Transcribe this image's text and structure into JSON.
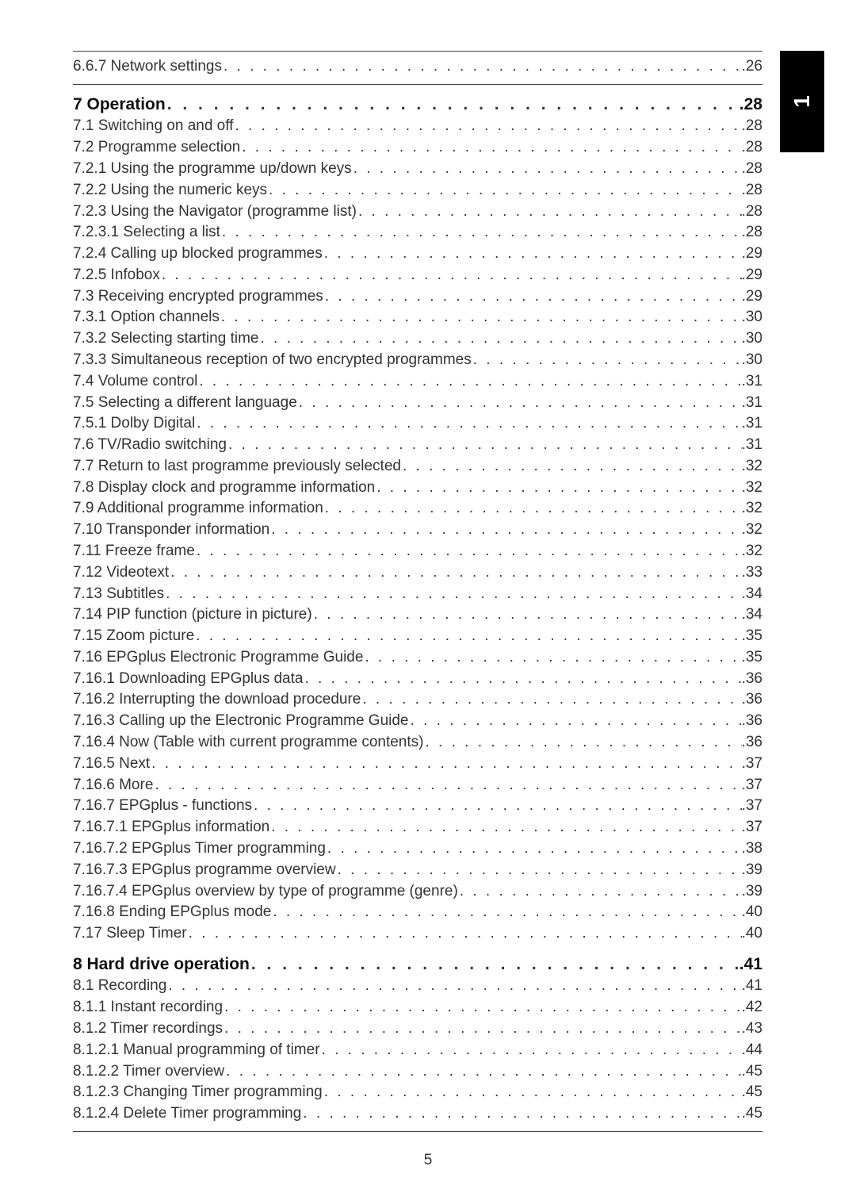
{
  "colors": {
    "text": "#333333",
    "heading": "#111111",
    "rule": "#444444",
    "tab_bg": "#000000",
    "tab_fg": "#ffffff",
    "page_bg": "#ffffff"
  },
  "typography": {
    "body_font": "Arial, Helvetica, sans-serif",
    "line_fontsize_pt": 14,
    "heading_fontsize_pt": 16,
    "tab_fontsize_pt": 21
  },
  "side_tab": {
    "label": "1"
  },
  "page_number": "5",
  "toc": [
    {
      "title": "6.6.7 Network settings",
      "page": "26",
      "section": false,
      "pre_rule": true
    },
    {
      "title": "7 Operation",
      "page": "28",
      "section": true,
      "pre_rule": true
    },
    {
      "title": "7.1 Switching on and off",
      "page": "28",
      "section": false
    },
    {
      "title": "7.2 Programme selection",
      "page": "28",
      "section": false
    },
    {
      "title": "7.2.1 Using the programme up/down keys",
      "page": "28",
      "section": false
    },
    {
      "title": "7.2.2 Using the numeric keys",
      "page": "28",
      "section": false
    },
    {
      "title": "7.2.3 Using the Navigator (programme list)",
      "page": "28",
      "section": false
    },
    {
      "title": "7.2.3.1 Selecting a list",
      "page": "28",
      "section": false
    },
    {
      "title": "7.2.4 Calling up blocked programmes",
      "page": "29",
      "section": false
    },
    {
      "title": "7.2.5 Infobox",
      "page": "29",
      "section": false
    },
    {
      "title": "7.3 Receiving encrypted programmes",
      "page": "29",
      "section": false
    },
    {
      "title": "7.3.1 Option channels",
      "page": "30",
      "section": false
    },
    {
      "title": "7.3.2 Selecting starting time",
      "page": "30",
      "section": false
    },
    {
      "title": "7.3.3 Simultaneous reception of two encrypted programmes",
      "page": "30",
      "section": false
    },
    {
      "title": "7.4 Volume control",
      "page": "31",
      "section": false
    },
    {
      "title": "7.5 Selecting a different language",
      "page": "31",
      "section": false
    },
    {
      "title": "7.5.1 Dolby Digital",
      "page": "31",
      "section": false
    },
    {
      "title": "7.6 TV/Radio switching",
      "page": "31",
      "section": false
    },
    {
      "title": "7.7 Return to last programme previously selected",
      "page": "32",
      "section": false
    },
    {
      "title": "7.8 Display clock and programme information",
      "page": "32",
      "section": false
    },
    {
      "title": "7.9 Additional programme information",
      "page": "32",
      "section": false
    },
    {
      "title": "7.10 Transponder information",
      "page": "32",
      "section": false
    },
    {
      "title": "7.11 Freeze frame",
      "page": "32",
      "section": false
    },
    {
      "title": "7.12 Videotext",
      "page": "33",
      "section": false
    },
    {
      "title": "7.13 Subtitles",
      "page": "34",
      "section": false
    },
    {
      "title": "7.14 PIP function (picture in picture)",
      "page": "34",
      "section": false
    },
    {
      "title": "7.15 Zoom picture",
      "page": "35",
      "section": false
    },
    {
      "title": "7.16 EPGplus Electronic Programme Guide",
      "page": "35",
      "section": false
    },
    {
      "title": "7.16.1 Downloading EPGplus data",
      "page": "36",
      "section": false
    },
    {
      "title": "7.16.2 Interrupting the download procedure",
      "page": "36",
      "section": false
    },
    {
      "title": "7.16.3 Calling up the Electronic Programme Guide",
      "page": "36",
      "section": false
    },
    {
      "title": "7.16.4 Now (Table with current programme contents)",
      "page": "36",
      "section": false
    },
    {
      "title": "7.16.5 Next",
      "page": "37",
      "section": false
    },
    {
      "title": "7.16.6 More",
      "page": "37",
      "section": false
    },
    {
      "title": "7.16.7 EPGplus - functions",
      "page": "37",
      "section": false
    },
    {
      "title": "7.16.7.1 EPGplus information",
      "page": "37",
      "section": false
    },
    {
      "title": "7.16.7.2 EPGplus Timer programming",
      "page": "38",
      "section": false
    },
    {
      "title": "7.16.7.3 EPGplus programme overview",
      "page": "39",
      "section": false
    },
    {
      "title": "7.16.7.4 EPGplus overview by type of programme (genre)",
      "page": "39",
      "section": false
    },
    {
      "title": "7.16.8 Ending EPGplus mode",
      "page": "40",
      "section": false
    },
    {
      "title": "7.17 Sleep Timer",
      "page": "40",
      "section": false
    },
    {
      "title": "8 Hard drive operation",
      "page": "41",
      "section": true
    },
    {
      "title": "8.1 Recording",
      "page": "41",
      "section": false
    },
    {
      "title": "8.1.1 Instant recording",
      "page": "42",
      "section": false
    },
    {
      "title": "8.1.2 Timer recordings",
      "page": "43",
      "section": false
    },
    {
      "title": "8.1.2.1 Manual programming of timer",
      "page": "44",
      "section": false
    },
    {
      "title": "8.1.2.2 Timer overview",
      "page": "45",
      "section": false
    },
    {
      "title": "8.1.2.3 Changing Timer programming",
      "page": "45",
      "section": false
    },
    {
      "title": "8.1.2.4 Delete Timer programming",
      "page": "45",
      "section": false
    }
  ]
}
